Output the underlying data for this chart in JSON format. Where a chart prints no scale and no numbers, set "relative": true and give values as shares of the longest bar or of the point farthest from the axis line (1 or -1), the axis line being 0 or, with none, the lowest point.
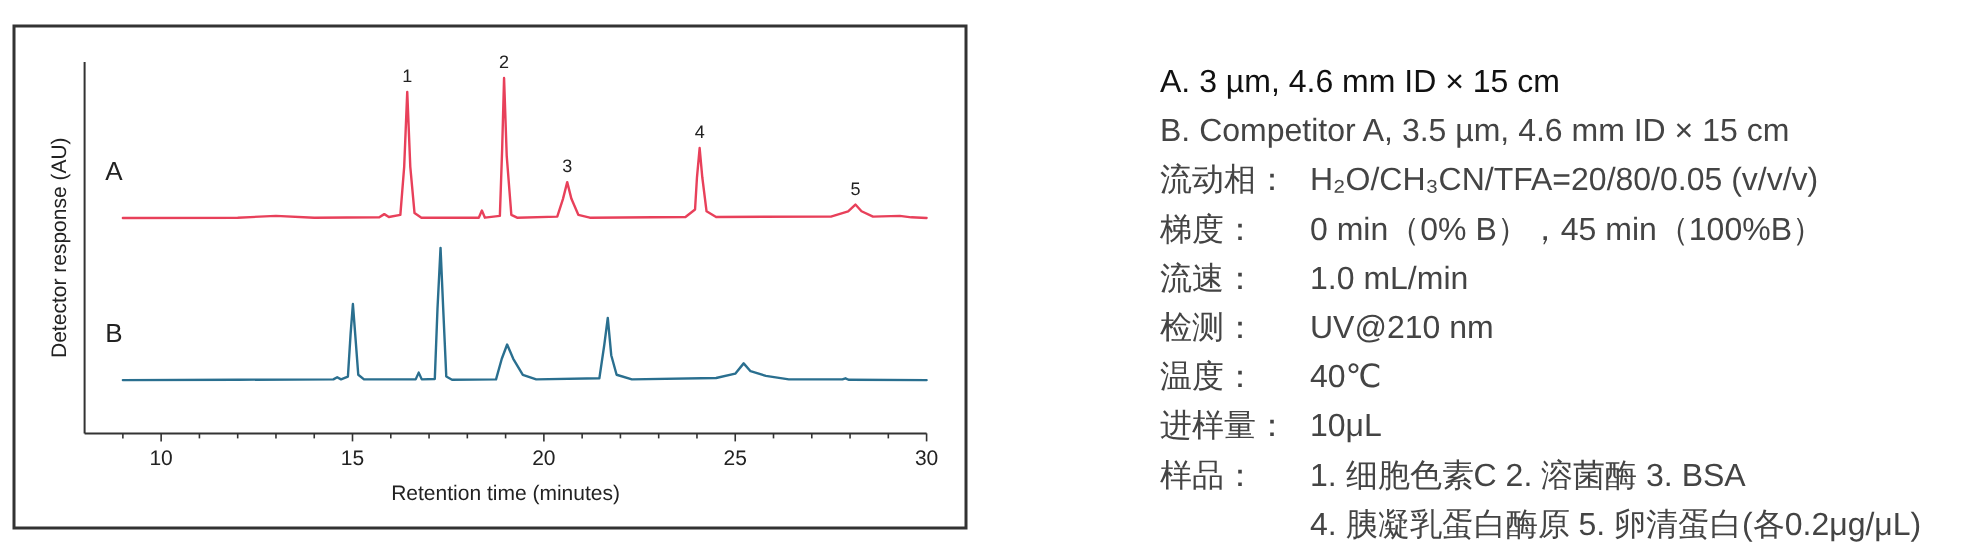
{
  "chart_data": {
    "type": "line",
    "relative": true,
    "xlabel": "Retention time (minutes)",
    "ylabel": "Detector response (AU)",
    "xlim": [
      8,
      30
    ],
    "xticks": [
      {
        "value": 9,
        "label": null
      },
      10,
      {
        "value": 11,
        "label": null
      },
      {
        "value": 12,
        "label": null
      },
      {
        "value": 13,
        "label": null
      },
      {
        "value": 14,
        "label": null
      },
      15,
      {
        "value": 16,
        "label": null
      },
      {
        "value": 17,
        "label": null
      },
      {
        "value": 18,
        "label": null
      },
      {
        "value": 19,
        "label": null
      },
      20,
      {
        "value": 21,
        "label": null
      },
      {
        "value": 22,
        "label": null
      },
      {
        "value": 23,
        "label": null
      },
      {
        "value": 24,
        "label": null
      },
      25,
      {
        "value": 26,
        "label": null
      },
      {
        "value": 27,
        "label": null
      },
      {
        "value": 28,
        "label": null
      },
      {
        "value": 29,
        "label": null
      },
      30
    ],
    "marker": "none",
    "line_style": "solid",
    "series": [
      {
        "name": "A",
        "color": "#e8405a",
        "x": [
          9,
          12,
          13,
          14,
          15.7,
          15.83,
          15.95,
          16.25,
          16.35,
          16.43,
          16.51,
          16.62,
          16.8,
          18.3,
          18.38,
          18.46,
          18.85,
          18.91,
          18.96,
          19.03,
          19.15,
          19.3,
          20.35,
          20.5,
          20.61,
          20.72,
          20.9,
          21.2,
          23.7,
          23.95,
          24.0,
          24.07,
          24.14,
          24.25,
          24.5,
          27.5,
          27.95,
          28.14,
          28.3,
          28.6,
          29.3,
          29.6,
          30
        ],
        "values": [
          0.606,
          0.607,
          0.612,
          0.607,
          0.608,
          0.617,
          0.609,
          0.615,
          0.75,
          0.961,
          0.75,
          0.62,
          0.607,
          0.607,
          0.627,
          0.607,
          0.612,
          0.8,
          1.0,
          0.78,
          0.615,
          0.607,
          0.61,
          0.66,
          0.707,
          0.66,
          0.615,
          0.607,
          0.609,
          0.63,
          0.72,
          0.803,
          0.72,
          0.625,
          0.609,
          0.61,
          0.625,
          0.644,
          0.625,
          0.61,
          0.612,
          0.608,
          0.606
        ]
      },
      {
        "name": "B",
        "color": "#2a6f8f",
        "x": [
          9,
          12,
          14.5,
          14.6,
          14.7,
          14.88,
          14.95,
          15.01,
          15.07,
          15.15,
          15.3,
          16.65,
          16.73,
          16.81,
          17.15,
          17.22,
          17.3,
          17.37,
          17.45,
          17.6,
          18.75,
          18.9,
          19.04,
          19.2,
          19.45,
          19.8,
          21.45,
          21.58,
          21.67,
          21.76,
          21.9,
          22.3,
          24.5,
          25.0,
          25.22,
          25.4,
          25.8,
          26.4,
          27.8,
          27.88,
          27.96,
          30
        ],
        "values": [
          0.15,
          0.151,
          0.152,
          0.158,
          0.152,
          0.16,
          0.28,
          0.364,
          0.28,
          0.165,
          0.152,
          0.152,
          0.171,
          0.152,
          0.153,
          0.35,
          0.522,
          0.35,
          0.16,
          0.151,
          0.152,
          0.21,
          0.25,
          0.21,
          0.165,
          0.152,
          0.155,
          0.25,
          0.325,
          0.22,
          0.165,
          0.152,
          0.156,
          0.168,
          0.197,
          0.175,
          0.162,
          0.152,
          0.152,
          0.155,
          0.151,
          0.15
        ]
      }
    ],
    "annotations": [
      {
        "text": "1",
        "x": 16.43,
        "y": 0.961
      },
      {
        "text": "2",
        "x": 18.96,
        "y": 1.0
      },
      {
        "text": "3",
        "x": 20.61,
        "y": 0.707
      },
      {
        "text": "4",
        "x": 24.07,
        "y": 0.803
      },
      {
        "text": "5",
        "x": 28.14,
        "y": 0.644
      },
      "A. 3 µm, 4.6 mm ID × 15 cm",
      "B. Competitor A, 3.5 µm, 4.6 mm ID × 15 cm",
      "流动相：",
      "H₂O/CH₃CN/TFA=20/80/0.05 (v/v/v)",
      "梯度：",
      "0 min（0% B），45 min（100%B）",
      "流速：",
      "1.0 mL/min",
      "检测：",
      "UV@210 nm",
      "温度：",
      "40℃",
      "进样量：",
      "10μL",
      "样品：",
      "1. 细胞色素C  2. 溶菌酶  3. BSA",
      "4. 胰凝乳蛋白酶原  5. 卵清蛋白(各0.2μg/μL)"
    ]
  }
}
